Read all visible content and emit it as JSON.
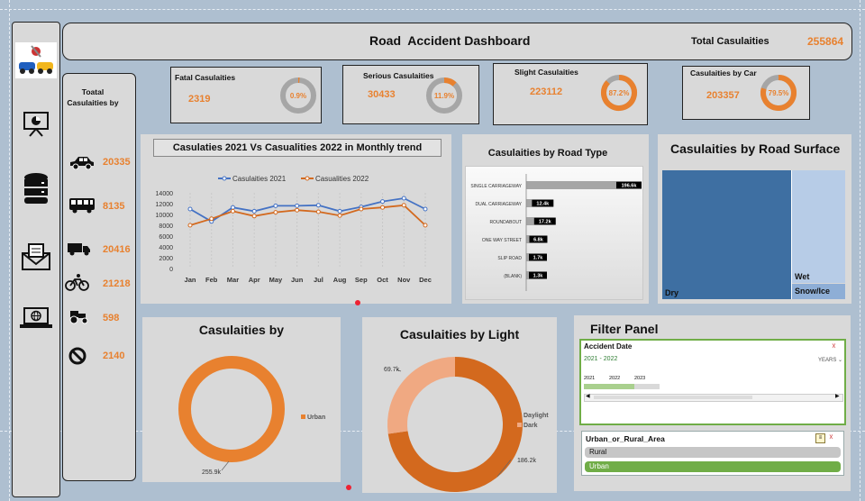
{
  "header": {
    "title": "Road  Accident Dashboard",
    "total_label": "Total Casulaities",
    "total_value": "255864"
  },
  "sidebar": {
    "icons": [
      "car-crash-logo-icon",
      "presentation-chart-icon",
      "database-icon",
      "mail-icon",
      "laptop-globe-icon"
    ]
  },
  "vehicles": {
    "title": "Toatal Casulaities by",
    "rows": [
      {
        "icon": "car-icon",
        "value": "20335"
      },
      {
        "icon": "bus-icon",
        "value": "8135"
      },
      {
        "icon": "truck-icon",
        "value": "20416"
      },
      {
        "icon": "bicycle-icon",
        "value": "21218"
      },
      {
        "icon": "tractor-icon",
        "value": "598"
      },
      {
        "icon": "other-icon",
        "value": "2140"
      }
    ]
  },
  "kpis": [
    {
      "title": "Fatal Casulaities",
      "value": "2319",
      "pct_label": "0.9%",
      "pct": 0.009
    },
    {
      "title": "Serious Casulaities",
      "value": "30433",
      "pct_label": "11.9%",
      "pct": 0.119
    },
    {
      "title": "Slight Casulaities",
      "value": "223112",
      "pct_label": "87.2%",
      "pct": 0.872
    },
    {
      "title": "Casulaities by Car",
      "value": "203357",
      "pct_label": "79.5%",
      "pct": 0.795
    }
  ],
  "colors": {
    "orange": "#e8812f",
    "blue": "#4472c4",
    "dark_orange": "#d3691e",
    "light_orange": "#f0a982",
    "green": "#70ad47",
    "ring_bg": "#a6a6a6"
  },
  "chart_data": [
    {
      "type": "line",
      "title": "Casulaties 2021 Vs Casualities 2022 in Monthly trend",
      "categories": [
        "Jan",
        "Feb",
        "Mar",
        "Apr",
        "May",
        "Jun",
        "Jul",
        "Aug",
        "Sep",
        "Oct",
        "Nov",
        "Dec"
      ],
      "series": [
        {
          "name": "Casulaities 2021",
          "values": [
            11000,
            8700,
            11300,
            10600,
            11600,
            11600,
            11700,
            10600,
            11400,
            12400,
            13000,
            11000
          ]
        },
        {
          "name": "Casualities 2022",
          "values": [
            8000,
            9200,
            10600,
            9700,
            10400,
            10800,
            10500,
            9800,
            11000,
            11300,
            11700,
            8000
          ]
        }
      ],
      "yticks": [
        "14000",
        "12000",
        "10000",
        "8000",
        "6000",
        "4000",
        "2000",
        "0"
      ],
      "ylim": [
        0,
        14000
      ],
      "legend": "top"
    },
    {
      "type": "bar",
      "title": "Casulaities by Road Type",
      "categories": [
        "SINGLE CARRIAGEWAY",
        "DUAL CARRIAGEWAY",
        "ROUNDABOUT",
        "ONE WAY STREET",
        "SLIP ROAD",
        "(BLANK)"
      ],
      "values": [
        196600,
        12400,
        17200,
        6800,
        1700,
        1300
      ],
      "value_labels": [
        "196.6k",
        "12.4k",
        "17.2k",
        "6.8k",
        "1.7k",
        "1.3k"
      ]
    },
    {
      "type": "heatmap",
      "title": "Casulaities by Road Surface",
      "categories": [
        "Dry",
        "Wet",
        "Snow/Ice"
      ]
    },
    {
      "type": "pie",
      "title": "Casulaities by",
      "categories": [
        "Urban"
      ],
      "values": [
        255.9
      ],
      "value_labels": [
        "255.9k"
      ]
    },
    {
      "type": "pie",
      "title": "Casulaities by Light",
      "categories": [
        "Daylight",
        "Dark"
      ],
      "values": [
        186.2,
        69.7
      ],
      "value_labels": [
        "186.2k",
        "69.7k"
      ]
    }
  ],
  "filter": {
    "title": "Filter Panel",
    "date_slicer": {
      "title": "Accident Date",
      "range": "2021 - 2022",
      "unit": "YEARS",
      "years": [
        "2021",
        "2022",
        "2023"
      ]
    },
    "area_slicer": {
      "title": "Urban_or_Rural_Area",
      "options": [
        "Rural",
        "Urban"
      ],
      "selected": "Urban"
    }
  }
}
